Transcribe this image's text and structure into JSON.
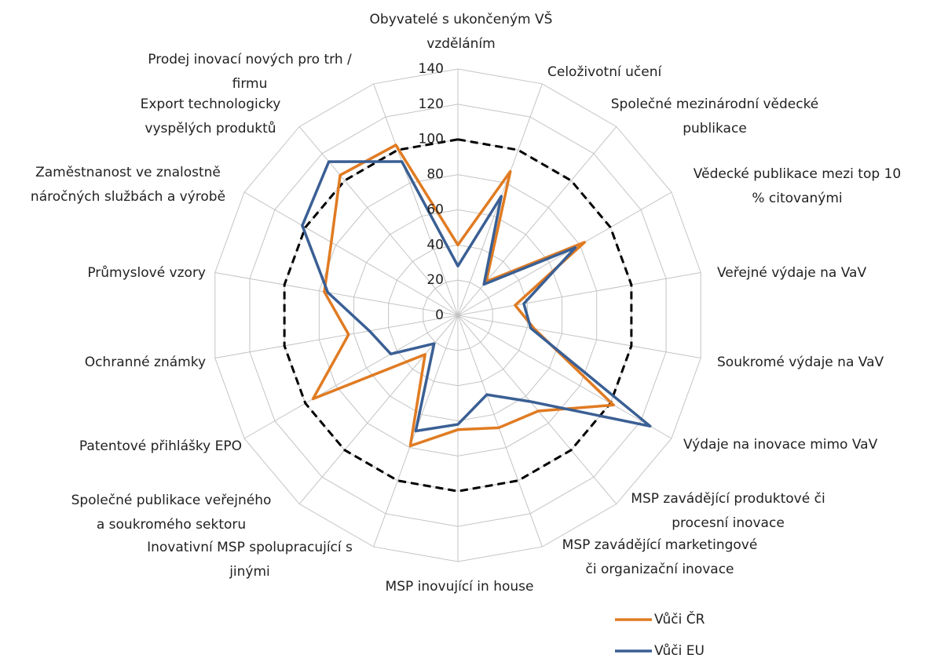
{
  "chart_data": {
    "type": "radar",
    "categories": [
      [
        "Obyvatelé s ukončeným VŠ",
        "vzděláním"
      ],
      [
        "Celoživotní učení"
      ],
      [
        "Společné mezinárodní vědecké",
        "publikace"
      ],
      [
        "Vědecké publikace mezi top 10",
        "% citovanými"
      ],
      [
        "Veřejné výdaje na VaV"
      ],
      [
        "Soukromé výdaje na VaV"
      ],
      [
        "Výdaje na inovace mimo VaV"
      ],
      [
        "MSP zavádějící produktové či",
        "procesní inovace"
      ],
      [
        "MSP zavádějící marketingové",
        "či organizační inovace"
      ],
      [
        "MSP inovující in house"
      ],
      [
        "Inovativní MSP spolupracující s",
        "jinými"
      ],
      [
        "Společné publikace veřejného",
        "a soukromého sektoru"
      ],
      [
        "Patentové přihlášky EPO"
      ],
      [
        "Ochranné známky"
      ],
      [
        "Průmyslové vzory"
      ],
      [
        "Zaměstnanost ve znalostně",
        "náročných službách a výrobě"
      ],
      [
        "Export technologicky",
        "vyspělých produktů"
      ],
      [
        "Prodej inovací nových pro trh /",
        "firmu"
      ]
    ],
    "series": [
      {
        "name": "Vůči ČR",
        "color": "#e07b22",
        "values": [
          40,
          87,
          25,
          83,
          33,
          44,
          102,
          71,
          68,
          65,
          79,
          29,
          95,
          63,
          77,
          83,
          104,
          103
        ]
      },
      {
        "name": "Vůči EU",
        "color": "#3a5f94",
        "values": [
          28,
          72,
          23,
          77,
          38,
          42,
          126,
          64,
          48,
          62,
          70,
          21,
          44,
          51,
          75,
          102,
          114,
          93
        ]
      }
    ],
    "reference_line": {
      "value": 100,
      "color": "#000000",
      "style": "dashed"
    },
    "rlim": [
      0,
      140
    ],
    "rticks": [
      0,
      20,
      40,
      60,
      80,
      100,
      120,
      140
    ],
    "grid": true,
    "legend": "bottom-right"
  }
}
